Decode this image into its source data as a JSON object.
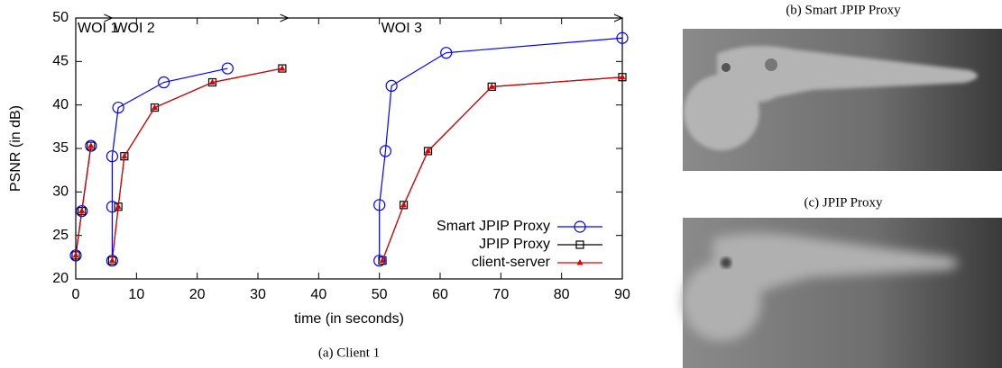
{
  "chart_data": {
    "type": "line",
    "xlabel": "time (in seconds)",
    "ylabel": "PSNR (in dB)",
    "caption": "(a) Client 1",
    "xlim": [
      0,
      90
    ],
    "xticks": [
      0,
      10,
      20,
      30,
      40,
      50,
      60,
      70,
      80,
      90
    ],
    "ylim": [
      20,
      50
    ],
    "yticks": [
      20,
      25,
      30,
      35,
      40,
      45,
      50
    ],
    "grid": false,
    "legend": "lower right",
    "annotations": [
      {
        "text": "WOI 1",
        "x": [
          0,
          6
        ]
      },
      {
        "text": "WOI 2",
        "x": [
          6,
          35
        ]
      },
      {
        "text": "WOI 3",
        "x": [
          50,
          90
        ]
      }
    ],
    "series": [
      {
        "name": "Smart JPIP Proxy",
        "color": "#0000ff",
        "marker": "circle",
        "x": [
          0,
          1,
          2.5,
          null,
          6,
          6,
          6,
          7,
          14.5,
          25,
          null,
          50,
          50,
          51,
          52,
          61,
          90
        ],
        "values": [
          22.7,
          27.8,
          35.3,
          null,
          22.1,
          28.3,
          34.1,
          39.7,
          42.6,
          44.2,
          null,
          22.1,
          28.5,
          34.7,
          42.2,
          46,
          47.7
        ]
      },
      {
        "name": "JPIP Proxy",
        "color": "#000000",
        "marker": "square",
        "x": [
          0,
          1,
          2.5,
          null,
          6,
          7,
          8,
          13,
          22.5,
          34,
          null,
          50.5,
          54,
          58,
          68.5,
          90
        ],
        "values": [
          22.7,
          27.8,
          35.3,
          null,
          22.1,
          28.3,
          34.1,
          39.7,
          42.6,
          44.2,
          null,
          22.1,
          28.5,
          34.7,
          42.1,
          43.2
        ]
      },
      {
        "name": "client-server",
        "color": "#e00000",
        "marker": "triangle",
        "x": [
          0,
          1,
          2.5,
          null,
          6,
          7,
          8,
          13,
          22.5,
          34,
          null,
          50.5,
          54,
          58,
          68.5,
          90
        ],
        "values": [
          22.7,
          27.8,
          35.3,
          null,
          22.1,
          28.3,
          34.1,
          39.7,
          42.6,
          44.2,
          null,
          22.1,
          28.5,
          34.7,
          42.1,
          43.2
        ]
      }
    ]
  },
  "figures": [
    {
      "caption": "(b) Smart JPIP Proxy"
    },
    {
      "caption": "(c) JPIP Proxy"
    }
  ]
}
